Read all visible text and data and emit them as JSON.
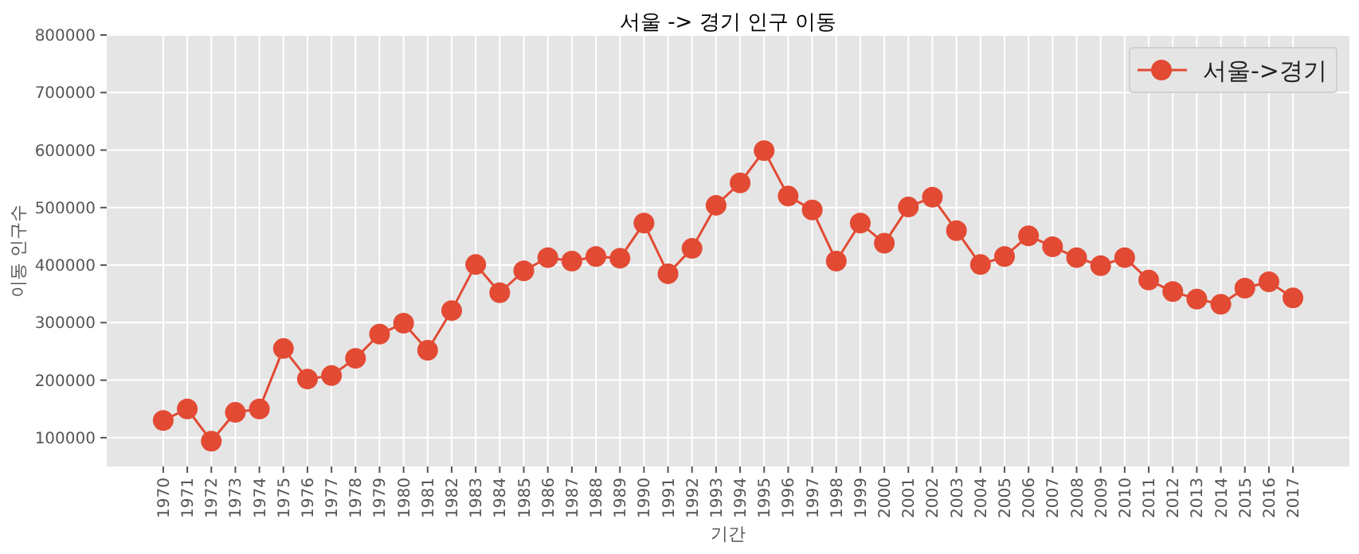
{
  "chart_data": {
    "type": "line",
    "title": "서울 -> 경기 인구 이동",
    "xlabel": "기간",
    "ylabel": "이동 인구수",
    "categories": [
      "1970",
      "1971",
      "1972",
      "1973",
      "1974",
      "1975",
      "1976",
      "1977",
      "1978",
      "1979",
      "1980",
      "1981",
      "1982",
      "1983",
      "1984",
      "1985",
      "1986",
      "1987",
      "1988",
      "1989",
      "1990",
      "1991",
      "1992",
      "1993",
      "1994",
      "1995",
      "1996",
      "1997",
      "1998",
      "1999",
      "2000",
      "2001",
      "2002",
      "2003",
      "2004",
      "2005",
      "2006",
      "2007",
      "2008",
      "2009",
      "2010",
      "2011",
      "2012",
      "2013",
      "2014",
      "2015",
      "2016",
      "2017"
    ],
    "series": [
      {
        "name": "서울->경기",
        "color": "#e24a33",
        "values": [
          130000,
          150000,
          94000,
          144000,
          150000,
          255000,
          202000,
          208000,
          238000,
          280000,
          299000,
          252000,
          321000,
          401000,
          352000,
          390000,
          413000,
          407000,
          415000,
          412000,
          473000,
          385000,
          429000,
          504000,
          543000,
          599000,
          520000,
          496000,
          407000,
          473000,
          438000,
          501000,
          518000,
          460000,
          401000,
          415000,
          451000,
          432000,
          413000,
          399000,
          413000,
          374000,
          354000,
          341000,
          332000,
          360000,
          371000,
          343000
        ]
      }
    ],
    "ylim": [
      50000,
      800000
    ],
    "yticks": [
      100000,
      200000,
      300000,
      400000,
      500000,
      600000,
      700000,
      800000
    ],
    "grid": true,
    "legend": "top right",
    "marker": "circle",
    "line_style": "solid"
  }
}
